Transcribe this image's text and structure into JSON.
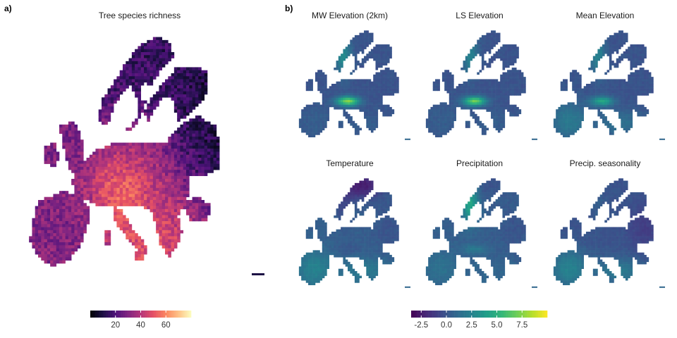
{
  "figure": {
    "panel_a_label": "a)",
    "panel_b_label": "b)"
  },
  "chart_data": [
    {
      "type": "heatmap",
      "panel": "a)",
      "title": "Tree species richness",
      "colorscale": "magma",
      "colorbar": {
        "min": 0,
        "max": 80,
        "ticks": [
          20,
          40,
          60
        ],
        "tick_labels": [
          "20",
          "40",
          "60"
        ]
      },
      "regions": [
        {
          "name": "Scandinavia",
          "approx_value": 15
        },
        {
          "name": "Eastern Europe",
          "approx_value": 8
        },
        {
          "name": "Central Europe",
          "approx_value": 45
        },
        {
          "name": "Alps",
          "approx_value": 60
        },
        {
          "name": "Iberia",
          "approx_value": 30
        },
        {
          "name": "Italy",
          "approx_value": 50
        },
        {
          "name": "British Isles",
          "approx_value": 28
        }
      ]
    },
    {
      "type": "heatmap",
      "panel": "b)",
      "colorscale": "viridis",
      "colorbar": {
        "min": -3.5,
        "max": 10,
        "ticks": [
          -2.5,
          0,
          2.5,
          5,
          7.5
        ],
        "tick_labels": [
          "-2.5",
          "0.0",
          "2.5",
          "5.0",
          "7.5"
        ]
      },
      "facets": [
        {
          "title": "MW Elevation (2km)",
          "base": 0,
          "alps": 7.5,
          "norway": 3,
          "iberia": 0.5,
          "south": 0.5,
          "east": 0,
          "north": 0
        },
        {
          "title": "LS Elevation",
          "base": 0,
          "alps": 7.0,
          "norway": 2.5,
          "iberia": 0.5,
          "south": 0.5,
          "east": 0,
          "north": 0
        },
        {
          "title": "Mean Elevation",
          "base": 0,
          "alps": 4.5,
          "norway": 2.5,
          "iberia": 2,
          "south": 1.5,
          "east": 0,
          "north": 0
        },
        {
          "title": "Temperature",
          "base": 0.5,
          "alps": 0,
          "norway": -0.5,
          "iberia": 2.5,
          "south": 2,
          "east": 0,
          "north": -2.5
        },
        {
          "title": "Precipitation",
          "base": 0.5,
          "alps": 2,
          "norway": 4.5,
          "iberia": 1.5,
          "south": 1,
          "east": 0,
          "north": 0
        },
        {
          "title": "Precip. seasonality",
          "base": 0,
          "alps": 0,
          "norway": 0.5,
          "iberia": 2.5,
          "south": 2,
          "east": -1,
          "north": 0
        }
      ]
    }
  ]
}
